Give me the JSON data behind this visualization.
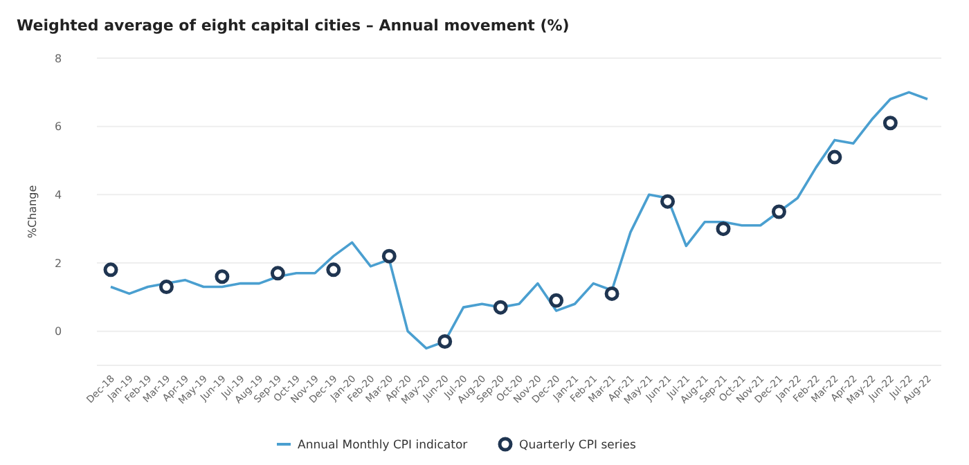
{
  "chart_data": {
    "type": "line",
    "title": "Weighted average of eight capital cities – Annual movement (%)",
    "ylabel": "%Change",
    "categories": [
      "Dec-18",
      "Jan-19",
      "Feb-19",
      "Mar-19",
      "Apr-19",
      "May-19",
      "Jun-19",
      "Jul-19",
      "Aug-19",
      "Sep-19",
      "Oct-19",
      "Nov-19",
      "Dec-19",
      "Jan-20",
      "Feb-20",
      "Mar-20",
      "Apr-20",
      "May-20",
      "Jun-20",
      "Jul-20",
      "Aug-20",
      "Sep-20",
      "Oct-20",
      "Nov-20",
      "Dec-20",
      "Jan-21",
      "Feb-21",
      "Mar-21",
      "Apr-21",
      "May-21",
      "Jun-21",
      "Jul-21",
      "Aug-21",
      "Sep-21",
      "Oct-21",
      "Nov-21",
      "Dec-21",
      "Jan-22",
      "Feb-22",
      "Mar-22",
      "Apr-22",
      "May-22",
      "Jun-22",
      "Jul-22",
      "Aug-22"
    ],
    "series": [
      {
        "name": "Annual Monthly CPI indicator",
        "color": "#4a9fd0",
        "values": [
          1.3,
          1.1,
          1.3,
          1.4,
          1.5,
          1.3,
          1.3,
          1.4,
          1.4,
          1.6,
          1.7,
          1.7,
          2.2,
          2.6,
          1.9,
          2.1,
          0.0,
          -0.5,
          -0.3,
          0.7,
          0.8,
          0.7,
          0.8,
          1.4,
          0.6,
          0.8,
          1.4,
          1.2,
          2.9,
          4.0,
          3.9,
          2.5,
          3.2,
          3.2,
          3.1,
          3.1,
          3.5,
          3.9,
          4.8,
          5.6,
          5.5,
          6.2,
          6.8,
          7.0,
          6.8
        ]
      },
      {
        "name": "Quarterly CPI series",
        "type": "scatter",
        "color": "#1f3551",
        "marker": "circle",
        "values": [
          1.8,
          null,
          null,
          1.3,
          null,
          null,
          1.6,
          null,
          null,
          1.7,
          null,
          null,
          1.8,
          null,
          null,
          2.2,
          null,
          null,
          -0.3,
          null,
          null,
          0.7,
          null,
          null,
          0.9,
          null,
          null,
          1.1,
          null,
          null,
          3.8,
          null,
          null,
          3.0,
          null,
          null,
          3.5,
          null,
          null,
          5.1,
          null,
          null,
          6.1,
          null,
          null
        ]
      }
    ],
    "ylim": [
      -1,
      8
    ],
    "yticks": [
      0,
      2,
      4,
      6,
      8
    ],
    "grid": "y",
    "legend": "bottom"
  }
}
